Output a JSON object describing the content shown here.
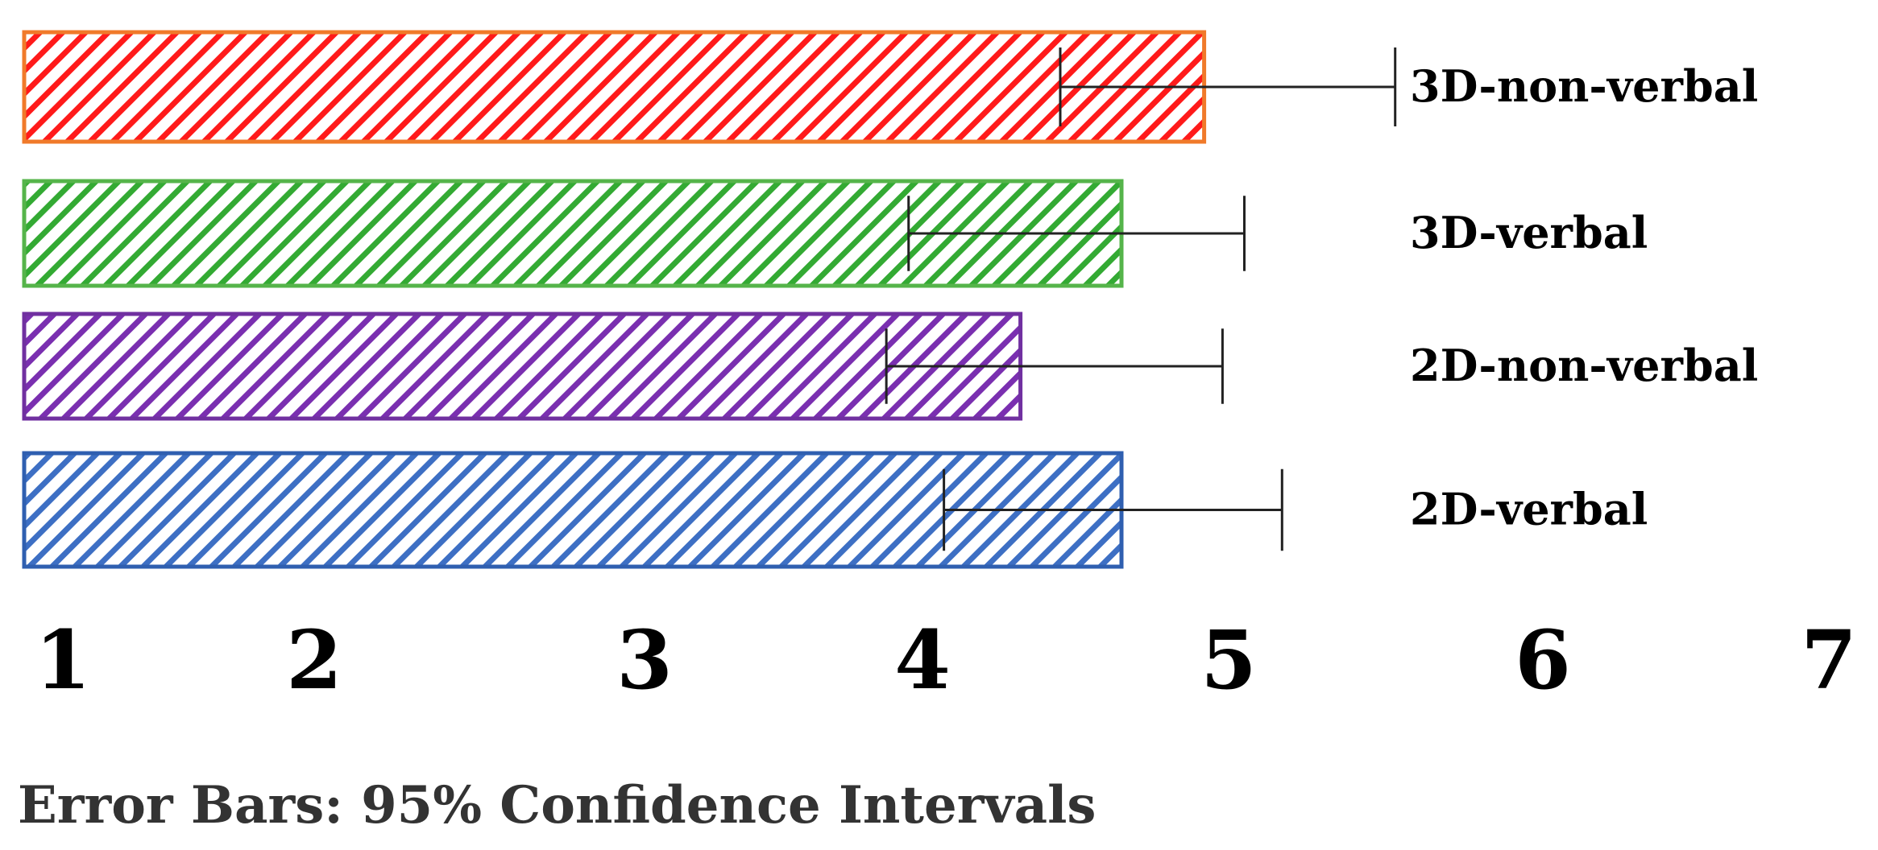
{
  "chart_data": {
    "type": "bar",
    "orientation": "horizontal",
    "categories": [
      "3D-non-verbal",
      "3D-verbal",
      "2D-non-verbal",
      "2D-verbal"
    ],
    "values": [
      4.92,
      4.65,
      4.32,
      4.65
    ],
    "ci_lower": [
      4.45,
      3.95,
      3.87,
      4.07
    ],
    "ci_upper": [
      5.53,
      5.05,
      4.98,
      5.17
    ],
    "colors": [
      "#ff1a1a",
      "#33aa33",
      "#7a2fb0",
      "#3d6fc4"
    ],
    "outline_colors": [
      "#f07a2a",
      "#55b44a",
      "#7030a0",
      "#2f5fb0"
    ],
    "fill_pattern": "diagonal-hatch",
    "xlim": [
      1,
      7
    ],
    "x_ticks": [
      "1",
      "2",
      "3",
      "4",
      "5",
      "6",
      "7"
    ],
    "grid": false,
    "legend": "none",
    "title": "",
    "xlabel": "",
    "ylabel": "",
    "footnote": "Error Bars: 95% Confidence Intervals"
  }
}
